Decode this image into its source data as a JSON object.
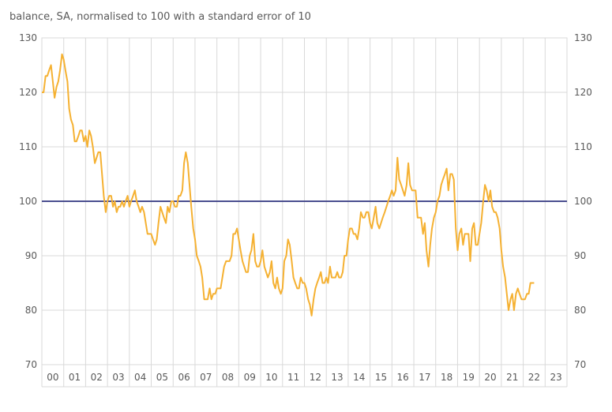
{
  "chart_data": {
    "type": "line",
    "subtitle": "balance, SA, normalised to 100 with a standard error of 10",
    "title": "",
    "xlabel": "",
    "ylabel": "",
    "ylim": [
      70,
      130
    ],
    "yticks": [
      70,
      80,
      90,
      100,
      110,
      120,
      130
    ],
    "x_tick_labels": [
      "00",
      "01",
      "02",
      "03",
      "04",
      "05",
      "06",
      "07",
      "08",
      "09",
      "10",
      "11",
      "12",
      "13",
      "14",
      "15",
      "16",
      "17",
      "18",
      "19",
      "20",
      "21",
      "22",
      "23"
    ],
    "x_start_year": 2000,
    "grid": true,
    "reference_line": {
      "value": 100,
      "color": "#4b4f8f"
    },
    "series": [
      {
        "color": "#f5b132",
        "points": [
          [
            2000.0,
            120
          ],
          [
            2000.08,
            120
          ],
          [
            2000.17,
            123
          ],
          [
            2000.25,
            123
          ],
          [
            2000.33,
            124
          ],
          [
            2000.42,
            125
          ],
          [
            2000.5,
            122
          ],
          [
            2000.58,
            119
          ],
          [
            2000.67,
            121
          ],
          [
            2000.75,
            122
          ],
          [
            2000.83,
            124
          ],
          [
            2000.92,
            127
          ],
          [
            2001.0,
            126
          ],
          [
            2001.08,
            124
          ],
          [
            2001.17,
            122
          ],
          [
            2001.25,
            117
          ],
          [
            2001.33,
            115
          ],
          [
            2001.42,
            114
          ],
          [
            2001.5,
            111
          ],
          [
            2001.58,
            111
          ],
          [
            2001.67,
            112
          ],
          [
            2001.75,
            113
          ],
          [
            2001.83,
            113
          ],
          [
            2001.92,
            111
          ],
          [
            2002.0,
            112
          ],
          [
            2002.08,
            110
          ],
          [
            2002.17,
            113
          ],
          [
            2002.25,
            112
          ],
          [
            2002.33,
            110
          ],
          [
            2002.42,
            107
          ],
          [
            2002.5,
            108
          ],
          [
            2002.58,
            109
          ],
          [
            2002.67,
            109
          ],
          [
            2002.75,
            105
          ],
          [
            2002.83,
            101
          ],
          [
            2002.92,
            98
          ],
          [
            2003.0,
            100
          ],
          [
            2003.08,
            101
          ],
          [
            2003.17,
            101
          ],
          [
            2003.25,
            99
          ],
          [
            2003.33,
            100
          ],
          [
            2003.42,
            98
          ],
          [
            2003.5,
            99
          ],
          [
            2003.58,
            99
          ],
          [
            2003.67,
            100
          ],
          [
            2003.75,
            99
          ],
          [
            2003.83,
            100
          ],
          [
            2003.92,
            101
          ],
          [
            2004.0,
            99
          ],
          [
            2004.08,
            100
          ],
          [
            2004.17,
            101
          ],
          [
            2004.25,
            102
          ],
          [
            2004.33,
            100
          ],
          [
            2004.42,
            99
          ],
          [
            2004.5,
            98
          ],
          [
            2004.58,
            99
          ],
          [
            2004.67,
            98
          ],
          [
            2004.75,
            96
          ],
          [
            2004.83,
            94
          ],
          [
            2004.92,
            94
          ],
          [
            2005.0,
            94
          ],
          [
            2005.08,
            93
          ],
          [
            2005.17,
            92
          ],
          [
            2005.25,
            93
          ],
          [
            2005.33,
            96
          ],
          [
            2005.42,
            99
          ],
          [
            2005.5,
            98
          ],
          [
            2005.58,
            97
          ],
          [
            2005.67,
            96
          ],
          [
            2005.75,
            99
          ],
          [
            2005.83,
            98
          ],
          [
            2005.92,
            100
          ],
          [
            2006.0,
            100
          ],
          [
            2006.08,
            99
          ],
          [
            2006.17,
            99
          ],
          [
            2006.25,
            101
          ],
          [
            2006.33,
            101
          ],
          [
            2006.42,
            102
          ],
          [
            2006.5,
            107
          ],
          [
            2006.58,
            109
          ],
          [
            2006.67,
            107
          ],
          [
            2006.75,
            103
          ],
          [
            2006.83,
            99
          ],
          [
            2006.92,
            95
          ],
          [
            2007.0,
            93
          ],
          [
            2007.08,
            90
          ],
          [
            2007.17,
            89
          ],
          [
            2007.25,
            88
          ],
          [
            2007.33,
            86
          ],
          [
            2007.42,
            82
          ],
          [
            2007.5,
            82
          ],
          [
            2007.58,
            82
          ],
          [
            2007.67,
            84
          ],
          [
            2007.75,
            82
          ],
          [
            2007.83,
            83
          ],
          [
            2007.92,
            83
          ],
          [
            2008.0,
            84
          ],
          [
            2008.08,
            84
          ],
          [
            2008.17,
            84
          ],
          [
            2008.25,
            86
          ],
          [
            2008.33,
            88
          ],
          [
            2008.42,
            89
          ],
          [
            2008.5,
            89
          ],
          [
            2008.58,
            89
          ],
          [
            2008.67,
            90
          ],
          [
            2008.75,
            94
          ],
          [
            2008.83,
            94
          ],
          [
            2008.92,
            95
          ],
          [
            2009.0,
            93
          ],
          [
            2009.08,
            91
          ],
          [
            2009.17,
            89
          ],
          [
            2009.25,
            88
          ],
          [
            2009.33,
            87
          ],
          [
            2009.42,
            87
          ],
          [
            2009.5,
            90
          ],
          [
            2009.58,
            91
          ],
          [
            2009.67,
            94
          ],
          [
            2009.75,
            89
          ],
          [
            2009.83,
            88
          ],
          [
            2009.92,
            88
          ],
          [
            2010.0,
            89
          ],
          [
            2010.08,
            91
          ],
          [
            2010.17,
            88
          ],
          [
            2010.25,
            87
          ],
          [
            2010.33,
            86
          ],
          [
            2010.42,
            87
          ],
          [
            2010.5,
            89
          ],
          [
            2010.58,
            85
          ],
          [
            2010.67,
            84
          ],
          [
            2010.75,
            86
          ],
          [
            2010.83,
            84
          ],
          [
            2010.92,
            83
          ],
          [
            2011.0,
            84
          ],
          [
            2011.08,
            89
          ],
          [
            2011.17,
            90
          ],
          [
            2011.25,
            93
          ],
          [
            2011.33,
            92
          ],
          [
            2011.42,
            89
          ],
          [
            2011.5,
            86
          ],
          [
            2011.58,
            85
          ],
          [
            2011.67,
            84
          ],
          [
            2011.75,
            84
          ],
          [
            2011.83,
            86
          ],
          [
            2011.92,
            85
          ],
          [
            2012.0,
            85
          ],
          [
            2012.08,
            84
          ],
          [
            2012.17,
            82
          ],
          [
            2012.25,
            81
          ],
          [
            2012.33,
            79
          ],
          [
            2012.42,
            82
          ],
          [
            2012.5,
            84
          ],
          [
            2012.58,
            85
          ],
          [
            2012.67,
            86
          ],
          [
            2012.75,
            87
          ],
          [
            2012.83,
            85
          ],
          [
            2012.92,
            85
          ],
          [
            2013.0,
            86
          ],
          [
            2013.08,
            85
          ],
          [
            2013.17,
            88
          ],
          [
            2013.25,
            86
          ],
          [
            2013.33,
            86
          ],
          [
            2013.42,
            86
          ],
          [
            2013.5,
            87
          ],
          [
            2013.58,
            86
          ],
          [
            2013.67,
            86
          ],
          [
            2013.75,
            87
          ],
          [
            2013.83,
            90
          ],
          [
            2013.92,
            90
          ],
          [
            2014.0,
            93
          ],
          [
            2014.08,
            95
          ],
          [
            2014.17,
            95
          ],
          [
            2014.25,
            94
          ],
          [
            2014.33,
            94
          ],
          [
            2014.42,
            93
          ],
          [
            2014.5,
            95
          ],
          [
            2014.58,
            98
          ],
          [
            2014.67,
            97
          ],
          [
            2014.75,
            97
          ],
          [
            2014.83,
            98
          ],
          [
            2014.92,
            98
          ],
          [
            2015.0,
            96
          ],
          [
            2015.08,
            95
          ],
          [
            2015.17,
            97
          ],
          [
            2015.25,
            99
          ],
          [
            2015.33,
            96
          ],
          [
            2015.42,
            95
          ],
          [
            2015.5,
            96
          ],
          [
            2015.58,
            97
          ],
          [
            2015.67,
            98
          ],
          [
            2015.75,
            99
          ],
          [
            2015.83,
            100
          ],
          [
            2015.92,
            101
          ],
          [
            2016.0,
            102
          ],
          [
            2016.08,
            101
          ],
          [
            2016.17,
            102
          ],
          [
            2016.25,
            108
          ],
          [
            2016.33,
            104
          ],
          [
            2016.42,
            103
          ],
          [
            2016.5,
            102
          ],
          [
            2016.58,
            101
          ],
          [
            2016.67,
            103
          ],
          [
            2016.75,
            107
          ],
          [
            2016.83,
            103
          ],
          [
            2016.92,
            102
          ],
          [
            2017.0,
            102
          ],
          [
            2017.08,
            102
          ],
          [
            2017.17,
            97
          ],
          [
            2017.25,
            97
          ],
          [
            2017.33,
            97
          ],
          [
            2017.42,
            94
          ],
          [
            2017.5,
            96
          ],
          [
            2017.58,
            91
          ],
          [
            2017.67,
            88
          ],
          [
            2017.75,
            92
          ],
          [
            2017.83,
            95
          ],
          [
            2017.92,
            97
          ],
          [
            2018.0,
            98
          ],
          [
            2018.08,
            100
          ],
          [
            2018.17,
            101
          ],
          [
            2018.25,
            103
          ],
          [
            2018.33,
            104
          ],
          [
            2018.42,
            105
          ],
          [
            2018.5,
            106
          ],
          [
            2018.58,
            102
          ],
          [
            2018.67,
            105
          ],
          [
            2018.75,
            105
          ],
          [
            2018.83,
            104
          ],
          [
            2018.92,
            95
          ],
          [
            2019.0,
            91
          ],
          [
            2019.08,
            94
          ],
          [
            2019.17,
            95
          ],
          [
            2019.25,
            92
          ],
          [
            2019.33,
            94
          ],
          [
            2019.42,
            94
          ],
          [
            2019.5,
            94
          ],
          [
            2019.58,
            89
          ],
          [
            2019.67,
            95
          ],
          [
            2019.75,
            96
          ],
          [
            2019.83,
            92
          ],
          [
            2019.92,
            92
          ],
          [
            2020.0,
            94
          ],
          [
            2020.08,
            96
          ],
          [
            2020.17,
            100
          ],
          [
            2020.25,
            103
          ],
          [
            2020.33,
            102
          ],
          [
            2020.42,
            100
          ],
          [
            2020.5,
            102
          ],
          [
            2020.58,
            99
          ],
          [
            2020.67,
            98
          ],
          [
            2020.75,
            98
          ],
          [
            2020.83,
            97
          ],
          [
            2020.92,
            95
          ],
          [
            2021.0,
            91
          ],
          [
            2021.08,
            88
          ],
          [
            2021.17,
            86
          ],
          [
            2021.25,
            83
          ],
          [
            2021.33,
            80
          ],
          [
            2021.42,
            82
          ],
          [
            2021.5,
            83
          ],
          [
            2021.58,
            80
          ],
          [
            2021.67,
            83
          ],
          [
            2021.75,
            84
          ],
          [
            2021.83,
            83
          ],
          [
            2021.92,
            82
          ],
          [
            2022.0,
            82
          ],
          [
            2022.08,
            82
          ],
          [
            2022.17,
            83
          ],
          [
            2022.25,
            83
          ],
          [
            2022.33,
            85
          ],
          [
            2022.42,
            85
          ],
          [
            2022.5,
            85
          ]
        ]
      }
    ]
  }
}
